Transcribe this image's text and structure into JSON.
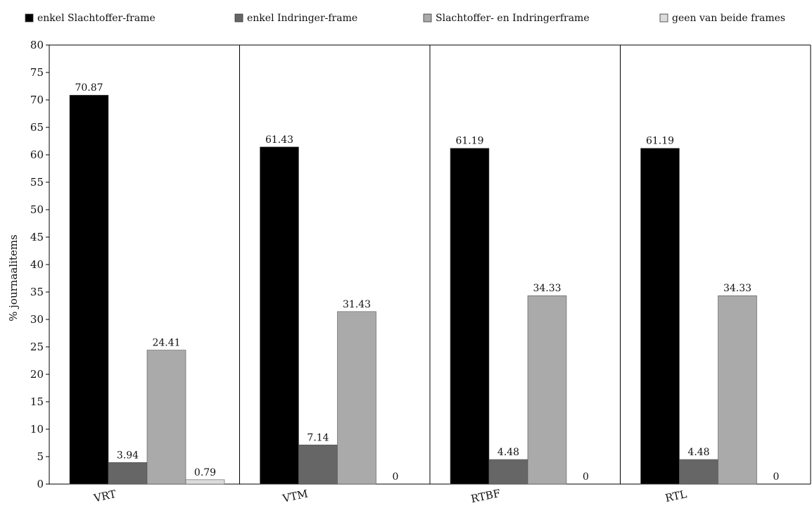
{
  "chart_data": {
    "type": "bar",
    "title": "",
    "xlabel": "",
    "ylabel": "% journaalitems",
    "ylim": [
      0,
      80
    ],
    "yticks": [
      0,
      5,
      10,
      15,
      20,
      25,
      30,
      35,
      40,
      45,
      50,
      55,
      60,
      65,
      70,
      75,
      80
    ],
    "categories": [
      "VRT",
      "VTM",
      "RTBF",
      "RTL"
    ],
    "series": [
      {
        "name": "enkel Slachtoffer-frame",
        "color": "#000000",
        "values": [
          70.87,
          61.43,
          61.19,
          61.19
        ],
        "labels": [
          "70.87",
          "61.43",
          "61.19",
          "61.19"
        ]
      },
      {
        "name": "enkel Indringer-frame",
        "color": "#666666",
        "values": [
          3.94,
          7.14,
          4.48,
          4.48
        ],
        "labels": [
          "3.94",
          "7.14",
          "4.48",
          "4.48"
        ]
      },
      {
        "name": "Slachtoffer- en Indringerframe",
        "color": "#aaaaaa",
        "values": [
          24.41,
          31.43,
          34.33,
          34.33
        ],
        "labels": [
          "24.41",
          "31.43",
          "34.33",
          "34.33"
        ]
      },
      {
        "name": "geen van beide frames",
        "color": "#dcdcdc",
        "values": [
          0.79,
          0,
          0,
          0
        ],
        "labels": [
          "0.79",
          "0",
          "0",
          "0"
        ]
      }
    ],
    "grid": "vertical separators between categories",
    "legend_position": "top"
  }
}
